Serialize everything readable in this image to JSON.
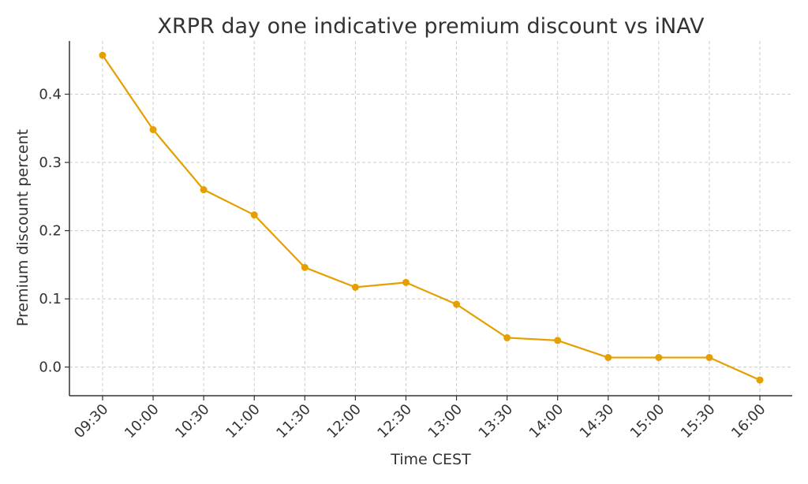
{
  "chart_data": {
    "type": "line",
    "title": "XRPR day one indicative premium discount vs iNAV",
    "xlabel": "Time CEST",
    "ylabel": "Premium discount percent",
    "categories": [
      "09:30",
      "10:00",
      "10:30",
      "11:00",
      "11:30",
      "12:00",
      "12:30",
      "13:00",
      "13:30",
      "14:00",
      "14:30",
      "15:00",
      "15:30",
      "16:00"
    ],
    "series": [
      {
        "values": [
          0.457,
          0.348,
          0.26,
          0.223,
          0.146,
          0.117,
          0.124,
          0.092,
          0.043,
          0.039,
          0.014,
          0.014,
          0.014,
          -0.019
        ],
        "color": "#E69F00"
      }
    ],
    "yticks": [
      0.0,
      0.1,
      0.2,
      0.3,
      0.4
    ],
    "ytick_labels": [
      "0.0",
      "0.1",
      "0.2",
      "0.3",
      "0.4"
    ],
    "ylim": [
      -0.042,
      0.478
    ],
    "grid": true,
    "legend": "none"
  }
}
